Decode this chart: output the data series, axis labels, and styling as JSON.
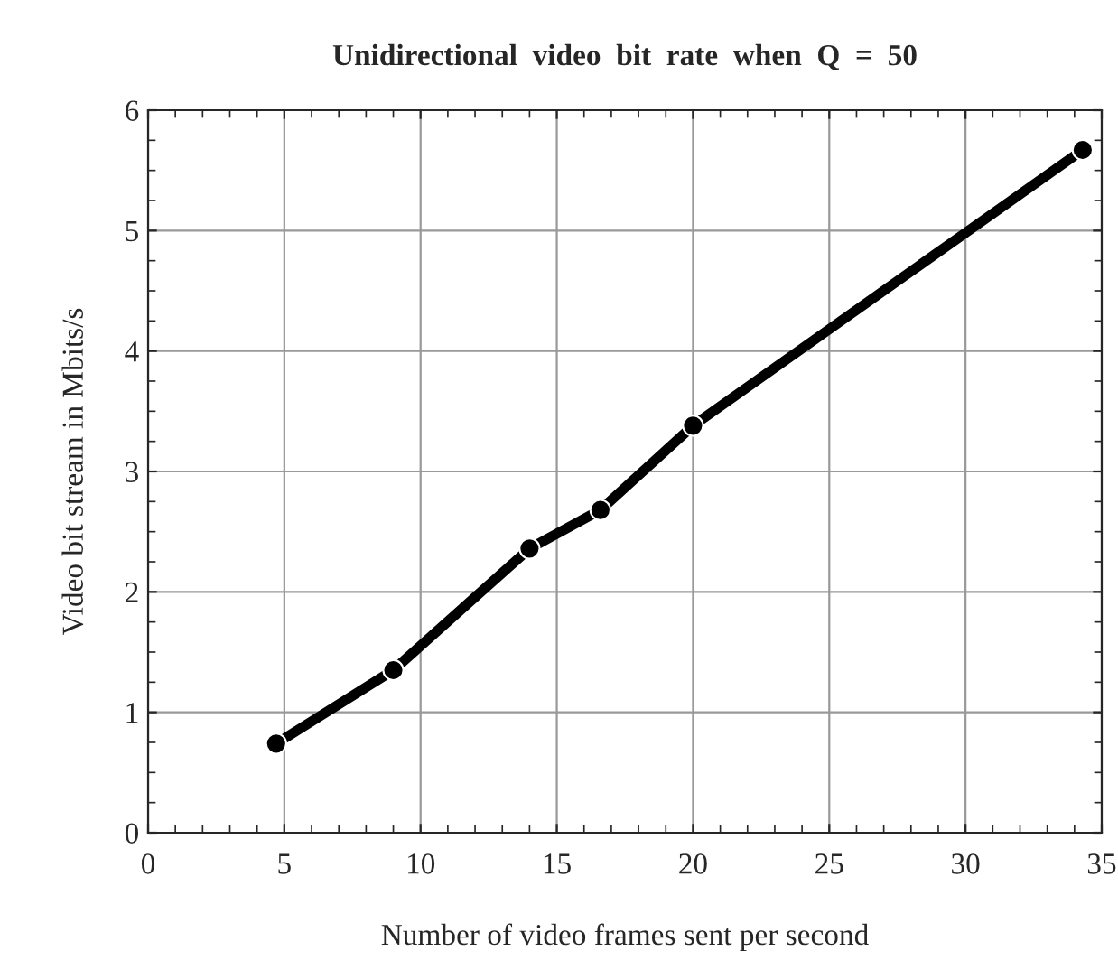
{
  "chart_data": {
    "type": "line",
    "title": "Unidirectional  video  bit  rate  when  Q  =  50",
    "xlabel": "Number of video frames sent per second",
    "ylabel": "Video bit stream in Mbits/s",
    "x": [
      4.7,
      9,
      14,
      16.6,
      20,
      34.3
    ],
    "series": [
      {
        "color": "#000000",
        "values": [
          0.74,
          1.35,
          2.36,
          2.68,
          3.38,
          5.67
        ]
      }
    ],
    "xlim": [
      0,
      35
    ],
    "xticks": [
      0,
      5,
      10,
      15,
      20,
      25,
      30,
      35
    ],
    "ylim": [
      0,
      6
    ],
    "yticks": [
      0,
      1,
      2,
      3,
      4,
      5,
      6
    ],
    "grid": true,
    "marker": "circle",
    "line_style": "solid"
  }
}
